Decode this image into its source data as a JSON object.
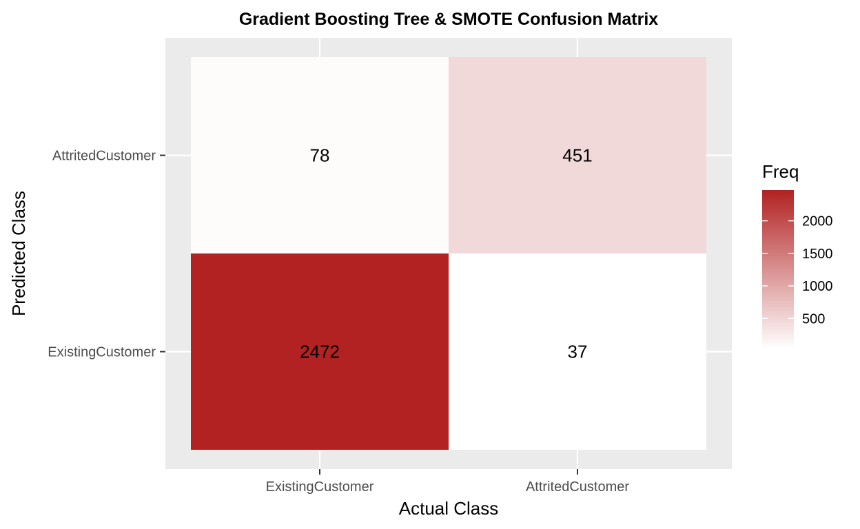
{
  "chart_data": {
    "type": "heatmap",
    "title": "Gradient Boosting Tree & SMOTE Confusion Matrix",
    "xlabel": "Actual Class",
    "ylabel": "Predicted Class",
    "x_categories": [
      "ExistingCustomer",
      "AttritedCustomer"
    ],
    "y_categories": [
      "AttritedCustomer",
      "ExistingCustomer"
    ],
    "cells": [
      {
        "x": "ExistingCustomer",
        "y": "AttritedCustomer",
        "value": 78
      },
      {
        "x": "AttritedCustomer",
        "y": "AttritedCustomer",
        "value": 451
      },
      {
        "x": "ExistingCustomer",
        "y": "ExistingCustomer",
        "value": 2472
      },
      {
        "x": "AttritedCustomer",
        "y": "ExistingCustomer",
        "value": 37
      }
    ],
    "legend": {
      "title": "Freq",
      "ticks": [
        500,
        1000,
        1500,
        2000
      ],
      "placement": "right"
    },
    "color_low": "#ffffff",
    "color_high": "#b22222",
    "panel_background": "#ebebeb",
    "grid": true
  }
}
